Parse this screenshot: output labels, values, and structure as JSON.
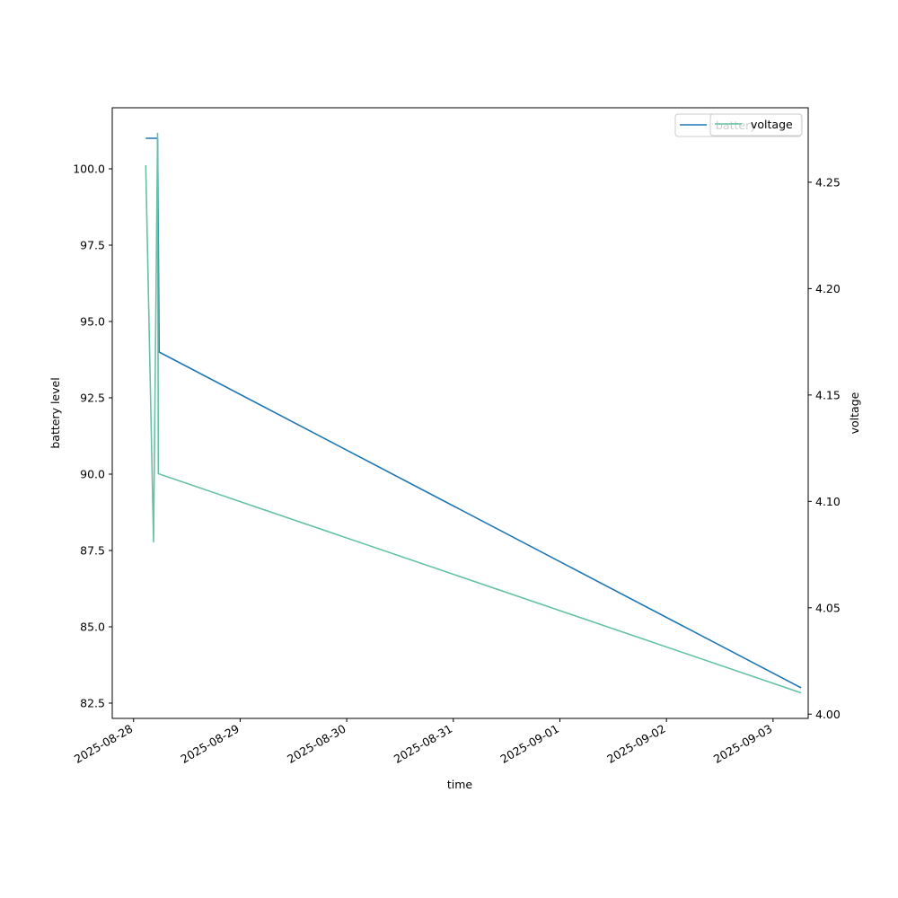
{
  "chart_data": {
    "type": "line",
    "xlabel": "time",
    "ylabel_left": "battery level",
    "ylabel_right": "voltage",
    "x_ticks": [
      "2025-08-28",
      "2025-08-29",
      "2025-08-30",
      "2025-08-31",
      "2025-09-01",
      "2025-09-02",
      "2025-09-03"
    ],
    "y_left_ticks": [
      82.5,
      85.0,
      87.5,
      90.0,
      92.5,
      95.0,
      97.5,
      100.0
    ],
    "y_left_lim": [
      82.0,
      102.0
    ],
    "y_right_ticks": [
      4.0,
      4.05,
      4.1,
      4.15,
      4.2,
      4.25
    ],
    "y_right_lim": [
      3.998,
      4.285
    ],
    "x_lim": [
      "2025-08-27 19:12",
      "2025-09-03 07:55"
    ],
    "legend_position": "top-right",
    "grid": false,
    "series": [
      {
        "name": "battery",
        "axis": "left",
        "color": "#1f77b4",
        "points": [
          {
            "x": "2025-08-28 02:45",
            "y": 101.0
          },
          {
            "x": "2025-08-28 05:25",
            "y": 101.0
          },
          {
            "x": "2025-08-28 05:45",
            "y": 94.0
          },
          {
            "x": "2025-09-03 06:20",
            "y": 83.0
          }
        ]
      },
      {
        "name": "voltage",
        "axis": "right",
        "color": "#66c2a5",
        "points": [
          {
            "x": "2025-08-28 02:45",
            "y": 4.258
          },
          {
            "x": "2025-08-28 04:30",
            "y": 4.081
          },
          {
            "x": "2025-08-28 05:25",
            "y": 4.273
          },
          {
            "x": "2025-08-28 05:35",
            "y": 4.113
          },
          {
            "x": "2025-09-03 06:20",
            "y": 4.01
          }
        ]
      }
    ]
  }
}
